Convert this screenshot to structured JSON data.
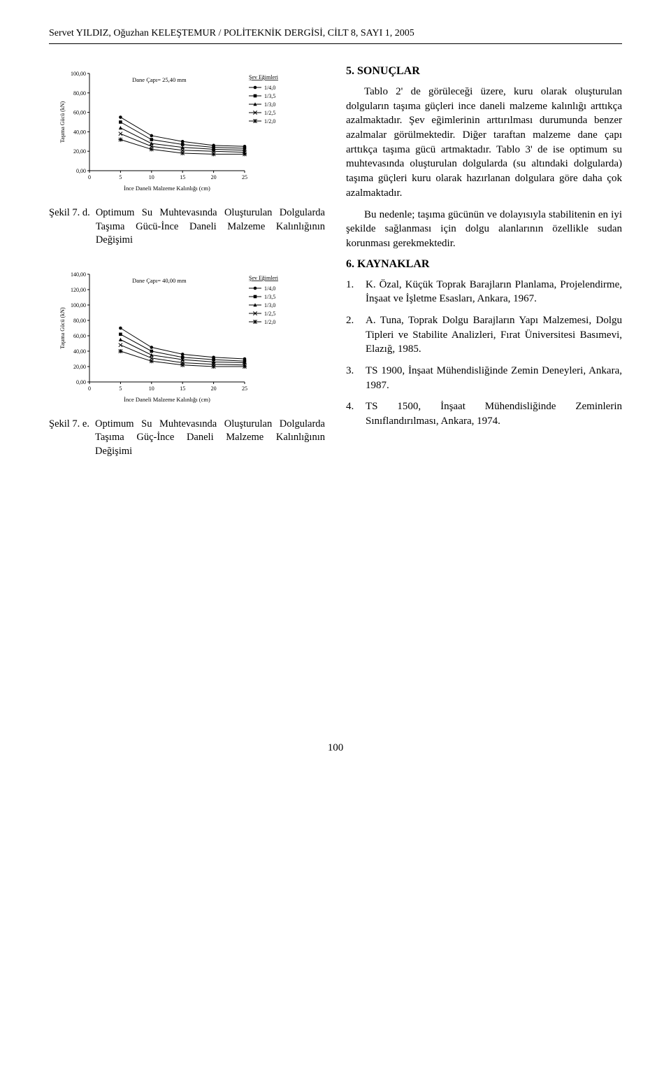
{
  "header": {
    "running": "Servet YILDIZ, Oğuzhan KELEŞTEMUR  /  POLİTEKNİK DERGİSİ, CİLT 8,  SAYI 1,  2005"
  },
  "chart1": {
    "type": "line",
    "title": "Dane Çapı= 25,40 mm",
    "x_label": "İnce Daneli Malzeme Kalınlığı (cm)",
    "y_label": "Taşıma Gücü (kN)",
    "x_ticks": [
      0,
      5,
      10,
      15,
      20,
      25
    ],
    "y_ticks": [
      "0,00",
      "20,00",
      "40,00",
      "60,00",
      "80,00",
      "100,00"
    ],
    "ylim": [
      0,
      100
    ],
    "legend_title": "Şev Eğimleri",
    "series": [
      {
        "name": "1/4,0",
        "color": "#000000",
        "marker": "dot",
        "values": [
          55,
          36,
          30,
          26,
          25
        ]
      },
      {
        "name": "1/3,5",
        "color": "#000000",
        "marker": "square",
        "values": [
          50,
          32,
          27,
          24,
          23
        ]
      },
      {
        "name": "1/3,0",
        "color": "#000000",
        "marker": "triangle",
        "values": [
          44,
          28,
          24,
          22,
          21
        ]
      },
      {
        "name": "1/2,5",
        "color": "#000000",
        "marker": "x",
        "values": [
          38,
          25,
          21,
          20,
          19
        ]
      },
      {
        "name": "1/2,0",
        "color": "#000000",
        "marker": "asterisk",
        "values": [
          32,
          22,
          18,
          17,
          17
        ]
      }
    ],
    "x_values": [
      5,
      10,
      15,
      20,
      25
    ],
    "caption_label": "Şekil 7. d.",
    "caption_text": "Optimum Su Muhtevasında Oluşturulan Dolgularda Taşıma Gücü-İnce Daneli Malzeme Kalınlığının Değişimi"
  },
  "chart2": {
    "type": "line",
    "title": "Dane Çapı= 40,00 mm",
    "x_label": "İnce Daneli Malzeme Kalınlığı (cm)",
    "y_label": "Taşıma Gücü (kN)",
    "x_ticks": [
      0,
      5,
      10,
      15,
      20,
      25
    ],
    "y_ticks": [
      "0,00",
      "20,00",
      "40,00",
      "60,00",
      "80,00",
      "100,00",
      "120,00",
      "140,00"
    ],
    "ylim": [
      0,
      140
    ],
    "legend_title": "Şev Eğimleri",
    "series": [
      {
        "name": "1/4,0",
        "color": "#000000",
        "marker": "dot",
        "values": [
          70,
          45,
          36,
          32,
          30
        ]
      },
      {
        "name": "1/3,5",
        "color": "#000000",
        "marker": "square",
        "values": [
          62,
          40,
          32,
          29,
          27
        ]
      },
      {
        "name": "1/3,0",
        "color": "#000000",
        "marker": "triangle",
        "values": [
          55,
          35,
          29,
          26,
          25
        ]
      },
      {
        "name": "1/2,5",
        "color": "#000000",
        "marker": "x",
        "values": [
          48,
          31,
          25,
          23,
          22
        ]
      },
      {
        "name": "1/2,0",
        "color": "#000000",
        "marker": "asterisk",
        "values": [
          40,
          27,
          22,
          20,
          20
        ]
      }
    ],
    "x_values": [
      5,
      10,
      15,
      20,
      25
    ],
    "caption_label": "Şekil 7. e.",
    "caption_text": "Optimum Su Muhtevasında Oluşturulan Dolgularda Taşıma Güç-İnce Daneli Malzeme Kalınlığının Değişimi"
  },
  "sections": {
    "results_title": "5. SONUÇLAR",
    "results_p1": "Tablo 2' de görüleceği üzere, kuru olarak oluşturulan dolguların taşıma güçleri ince daneli malzeme kalınlığı arttıkça azalmaktadır. Şev eğimlerinin arttırılması durumunda benzer azalmalar görülmektedir. Diğer taraftan malzeme dane çapı arttıkça taşıma gücü artmaktadır. Tablo 3' de ise optimum su muhtevasında oluşturulan dolgularda (su altındaki dolgularda) taşıma güçleri kuru olarak hazırlanan dolgulara göre daha çok azalmaktadır.",
    "results_p2": "Bu nedenle; taşıma gücünün ve dolayısıyla stabilitenin en iyi şekilde sağlanması için dolgu alanlarının özellikle sudan korunması gerekmektedir.",
    "refs_title": "6. KAYNAKLAR",
    "refs": [
      {
        "n": "1.",
        "t": "K. Özal,  Küçük Toprak Barajların Planlama, Projelendirme, İnşaat ve İşletme  Esasları, Ankara, 1967."
      },
      {
        "n": "2.",
        "t": "A. Tuna, Toprak Dolgu Barajların Yapı Malzemesi, Dolgu Tipleri ve Stabilite Analizleri, Fırat Üniversitesi Basımevi, Elazığ, 1985."
      },
      {
        "n": "3.",
        "t": "TS 1900, İnşaat Mühendisliğinde Zemin Deneyleri, Ankara, 1987."
      },
      {
        "n": "4.",
        "t": "TS 1500, İnşaat Mühendisliğinde Zeminlerin Sınıflandırılması, Ankara, 1974."
      }
    ]
  },
  "page_number": "100",
  "style": {
    "bg": "#ffffff",
    "text": "#000000",
    "axis": "#000000",
    "line_w": 1
  }
}
